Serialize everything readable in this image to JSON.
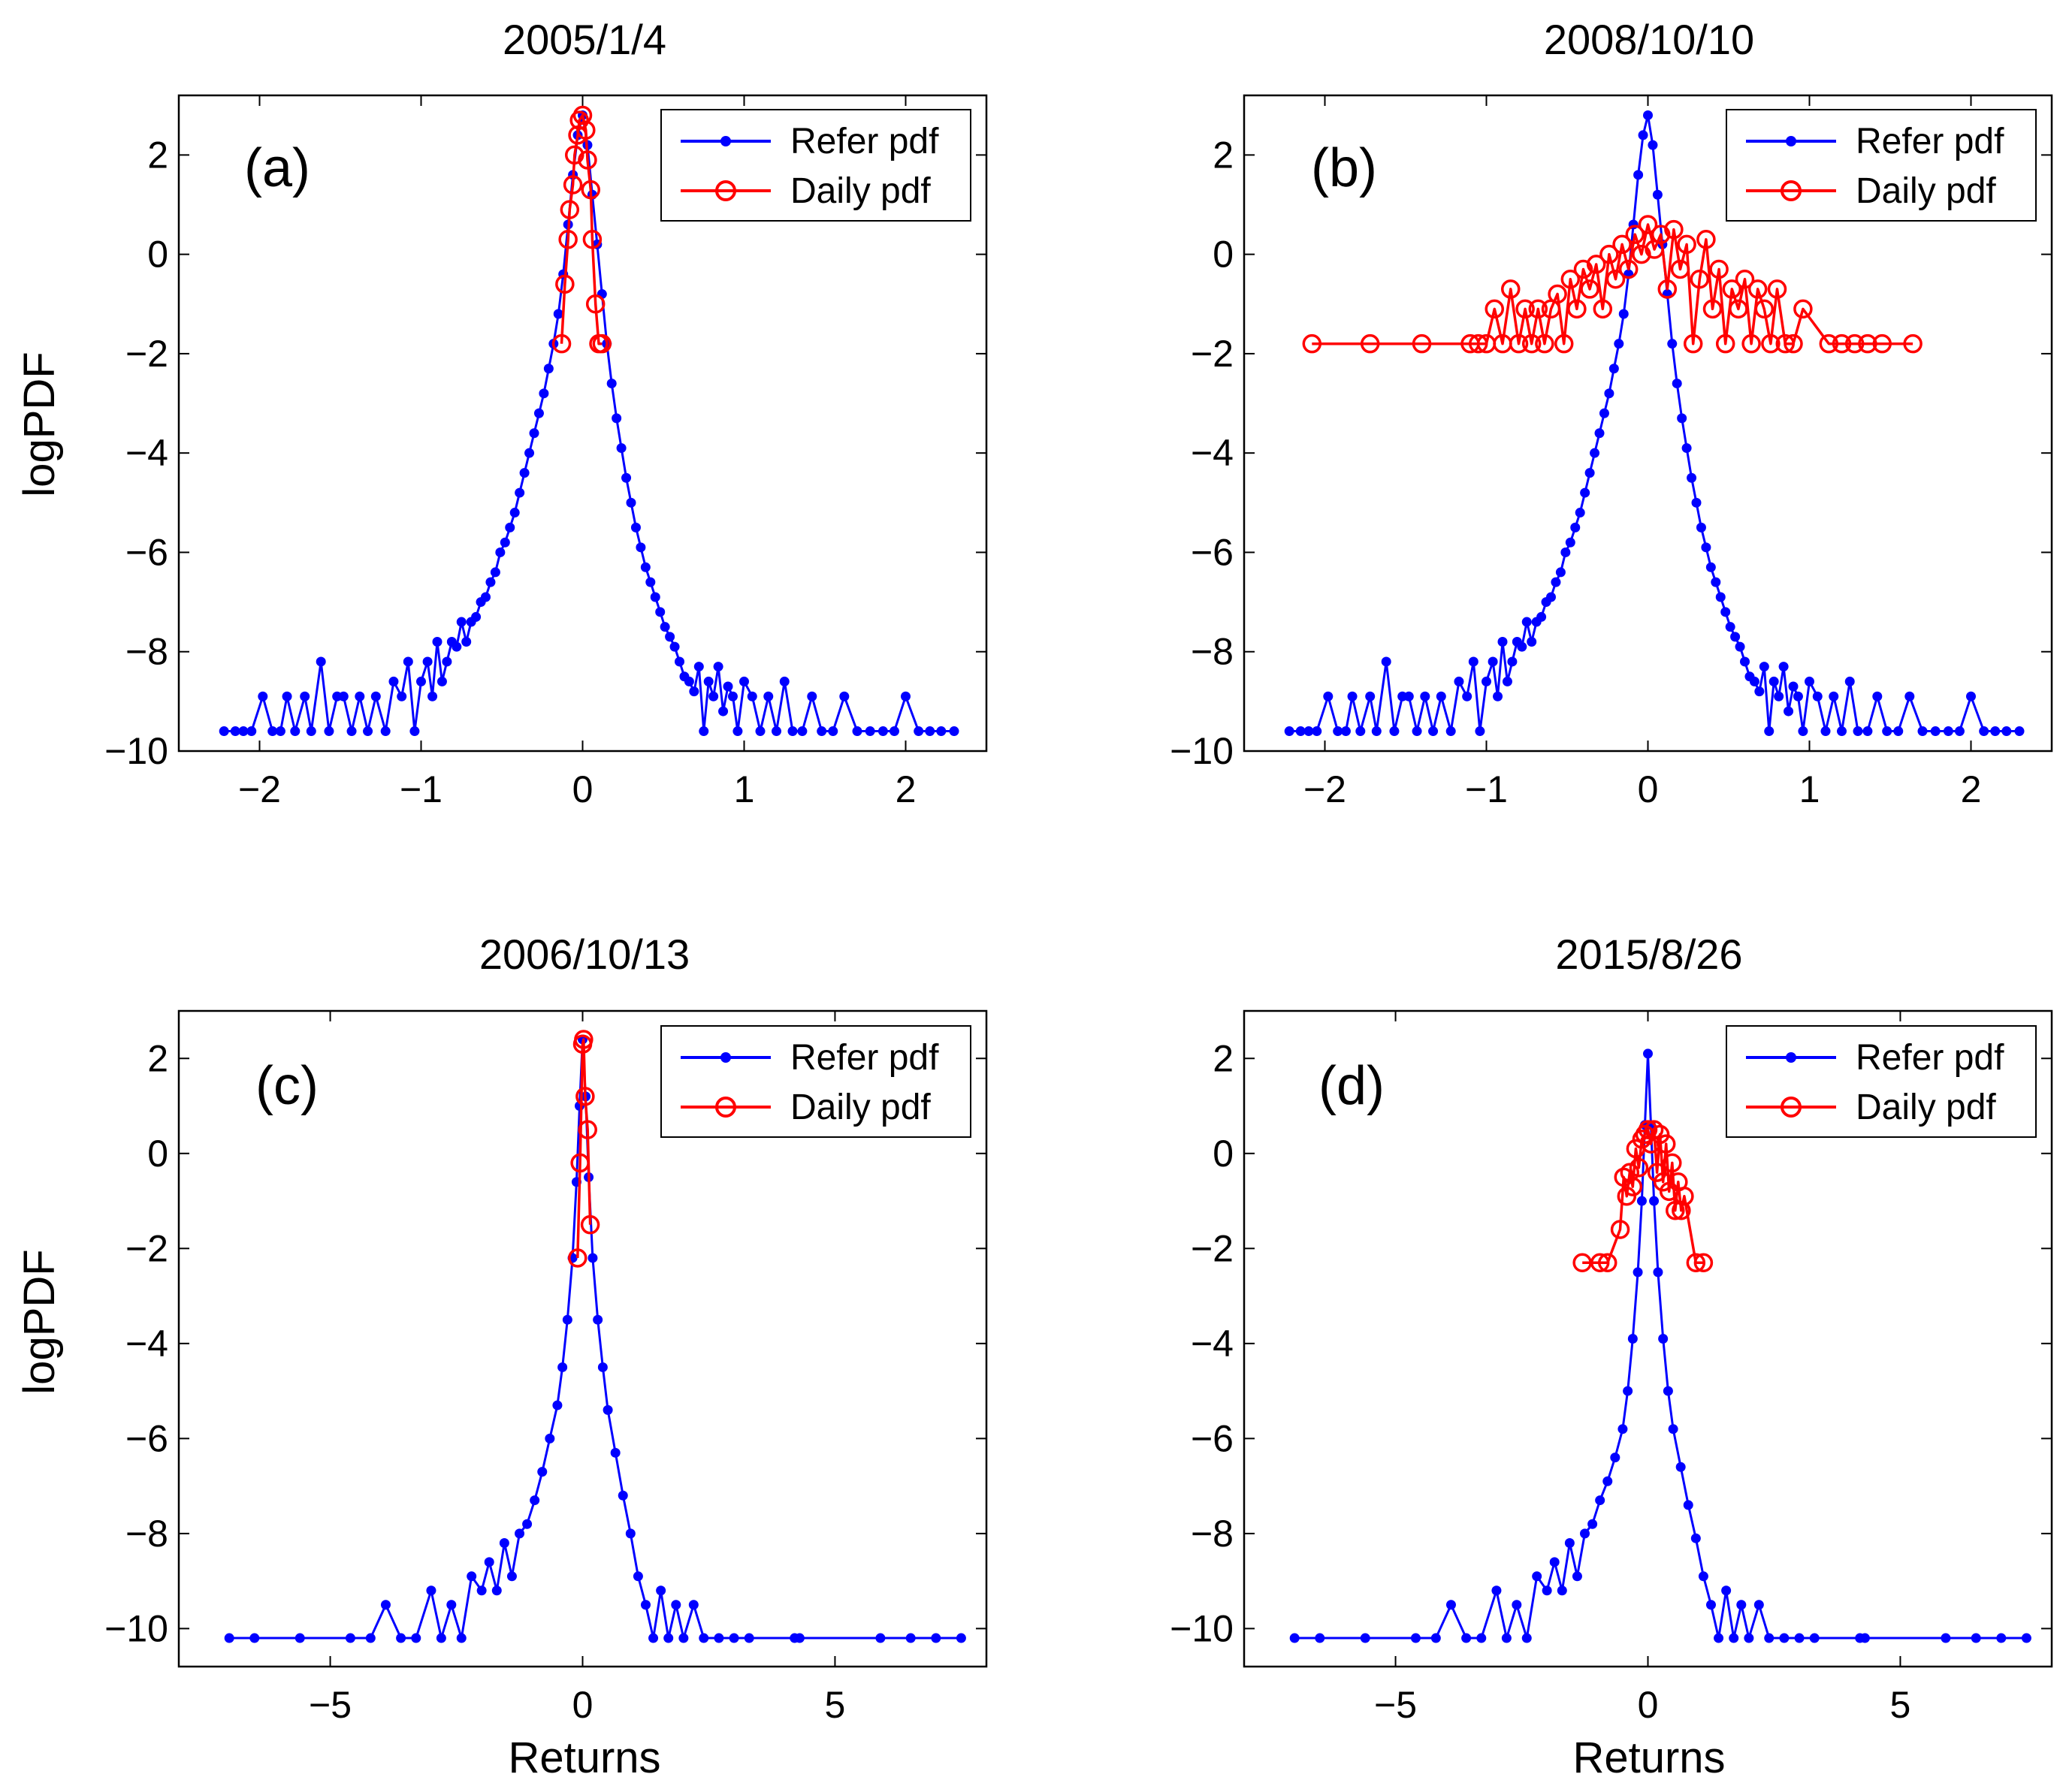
{
  "figure": {
    "series_names": [
      "Refer pdf",
      "Daily pdf"
    ],
    "colors": {
      "refer": "#0000ff",
      "daily": "#ff0000",
      "axes": "#000000",
      "background": "#ffffff"
    }
  },
  "chart_data": [
    {
      "type": "line",
      "panel": "(a)",
      "title": "2005/1/4",
      "xlabel": "",
      "ylabel": "logPDF",
      "xlim": [
        -2.5,
        2.5
      ],
      "ylim": [
        -10,
        3.2
      ],
      "xticks": [
        -2,
        -1,
        0,
        1,
        2
      ],
      "yticks": [
        -10,
        -8,
        -6,
        -4,
        -2,
        0,
        2
      ],
      "legend": [
        "Refer pdf",
        "Daily pdf"
      ],
      "legend_position": "top-right",
      "series": [
        {
          "name": "Refer pdf",
          "marker": "dot",
          "x": [
            -2.22,
            -2.15,
            -2.1,
            -2.05,
            -1.98,
            -1.92,
            -1.87,
            -1.83,
            -1.78,
            -1.72,
            -1.68,
            -1.62,
            -1.57,
            -1.52,
            -1.48,
            -1.43,
            -1.38,
            -1.33,
            -1.28,
            -1.22,
            -1.17,
            -1.12,
            -1.08,
            -1.04,
            -1.0,
            -0.96,
            -0.93,
            -0.9,
            -0.87,
            -0.84,
            -0.81,
            -0.78,
            -0.75,
            -0.72,
            -0.69,
            -0.66,
            -0.63,
            -0.6,
            -0.57,
            -0.54,
            -0.51,
            -0.48,
            -0.45,
            -0.42,
            -0.39,
            -0.36,
            -0.33,
            -0.3,
            -0.27,
            -0.24,
            -0.21,
            -0.18,
            -0.15,
            -0.12,
            -0.09,
            -0.06,
            -0.03,
            0.0,
            0.03,
            0.06,
            0.09,
            0.12,
            0.15,
            0.18,
            0.21,
            0.24,
            0.27,
            0.3,
            0.33,
            0.36,
            0.39,
            0.42,
            0.45,
            0.48,
            0.51,
            0.54,
            0.57,
            0.6,
            0.63,
            0.66,
            0.69,
            0.72,
            0.75,
            0.78,
            0.81,
            0.84,
            0.87,
            0.9,
            0.93,
            0.96,
            1.0,
            1.05,
            1.1,
            1.15,
            1.2,
            1.25,
            1.3,
            1.36,
            1.42,
            1.48,
            1.55,
            1.62,
            1.7,
            1.78,
            1.86,
            1.93,
            2.0,
            2.08,
            2.15,
            2.22,
            2.3
          ],
          "y": [
            -9.6,
            -9.6,
            -9.6,
            -9.6,
            -8.9,
            -9.6,
            -9.6,
            -8.9,
            -9.6,
            -8.9,
            -9.6,
            -8.2,
            -9.6,
            -8.9,
            -8.9,
            -9.6,
            -8.9,
            -9.6,
            -8.9,
            -9.6,
            -8.6,
            -8.9,
            -8.2,
            -9.6,
            -8.6,
            -8.2,
            -8.9,
            -7.8,
            -8.6,
            -8.2,
            -7.8,
            -7.9,
            -7.4,
            -7.8,
            -7.4,
            -7.3,
            -7.0,
            -6.9,
            -6.6,
            -6.4,
            -6.0,
            -5.8,
            -5.5,
            -5.2,
            -4.8,
            -4.4,
            -4.0,
            -3.6,
            -3.2,
            -2.8,
            -2.3,
            -1.8,
            -1.2,
            -0.4,
            0.6,
            1.6,
            2.4,
            2.8,
            2.2,
            1.2,
            0.2,
            -0.8,
            -1.8,
            -2.6,
            -3.3,
            -3.9,
            -4.5,
            -5.0,
            -5.5,
            -5.9,
            -6.3,
            -6.6,
            -6.9,
            -7.2,
            -7.5,
            -7.7,
            -7.9,
            -8.2,
            -8.5,
            -8.6,
            -8.8,
            -8.3,
            -9.6,
            -8.6,
            -8.9,
            -8.3,
            -9.2,
            -8.7,
            -8.9,
            -9.6,
            -8.6,
            -8.9,
            -9.6,
            -8.9,
            -9.6,
            -8.6,
            -9.6,
            -9.6,
            -8.9,
            -9.6,
            -9.6,
            -8.9,
            -9.6,
            -9.6,
            -9.6,
            -9.6,
            -8.9,
            -9.6,
            -9.6,
            -9.6,
            -9.6
          ]
        },
        {
          "name": "Daily pdf",
          "marker": "circle",
          "x": [
            -0.13,
            -0.11,
            -0.09,
            -0.08,
            -0.06,
            -0.05,
            -0.03,
            -0.02,
            0.0,
            0.02,
            0.03,
            0.05,
            0.06,
            0.08,
            0.1,
            0.12
          ],
          "y": [
            -1.8,
            -0.6,
            0.3,
            0.9,
            1.4,
            2.0,
            2.4,
            2.7,
            2.8,
            2.5,
            1.9,
            1.3,
            0.3,
            -1.0,
            -1.8,
            -1.8
          ]
        }
      ]
    },
    {
      "type": "line",
      "panel": "(b)",
      "title": "2008/10/10",
      "xlabel": "",
      "ylabel": "",
      "xlim": [
        -2.5,
        2.5
      ],
      "ylim": [
        -10,
        3.2
      ],
      "xticks": [
        -2,
        -1,
        0,
        1,
        2
      ],
      "yticks": [
        -10,
        -8,
        -6,
        -4,
        -2,
        0,
        2
      ],
      "legend": [
        "Refer pdf",
        "Daily pdf"
      ],
      "legend_position": "top-right",
      "series": [
        {
          "name": "Refer pdf",
          "marker": "dot",
          "x": [
            -2.22,
            -2.15,
            -2.1,
            -2.05,
            -1.98,
            -1.92,
            -1.87,
            -1.83,
            -1.78,
            -1.72,
            -1.68,
            -1.62,
            -1.57,
            -1.52,
            -1.48,
            -1.43,
            -1.38,
            -1.33,
            -1.28,
            -1.22,
            -1.17,
            -1.12,
            -1.08,
            -1.04,
            -1.0,
            -0.96,
            -0.93,
            -0.9,
            -0.87,
            -0.84,
            -0.81,
            -0.78,
            -0.75,
            -0.72,
            -0.69,
            -0.66,
            -0.63,
            -0.6,
            -0.57,
            -0.54,
            -0.51,
            -0.48,
            -0.45,
            -0.42,
            -0.39,
            -0.36,
            -0.33,
            -0.3,
            -0.27,
            -0.24,
            -0.21,
            -0.18,
            -0.15,
            -0.12,
            -0.09,
            -0.06,
            -0.03,
            0.0,
            0.03,
            0.06,
            0.09,
            0.12,
            0.15,
            0.18,
            0.21,
            0.24,
            0.27,
            0.3,
            0.33,
            0.36,
            0.39,
            0.42,
            0.45,
            0.48,
            0.51,
            0.54,
            0.57,
            0.6,
            0.63,
            0.66,
            0.69,
            0.72,
            0.75,
            0.78,
            0.81,
            0.84,
            0.87,
            0.9,
            0.93,
            0.96,
            1.0,
            1.05,
            1.1,
            1.15,
            1.2,
            1.25,
            1.3,
            1.36,
            1.42,
            1.48,
            1.55,
            1.62,
            1.7,
            1.78,
            1.86,
            1.93,
            2.0,
            2.08,
            2.15,
            2.22,
            2.3
          ],
          "y": [
            -9.6,
            -9.6,
            -9.6,
            -9.6,
            -8.9,
            -9.6,
            -9.6,
            -8.9,
            -9.6,
            -8.9,
            -9.6,
            -8.2,
            -9.6,
            -8.9,
            -8.9,
            -9.6,
            -8.9,
            -9.6,
            -8.9,
            -9.6,
            -8.6,
            -8.9,
            -8.2,
            -9.6,
            -8.6,
            -8.2,
            -8.9,
            -7.8,
            -8.6,
            -8.2,
            -7.8,
            -7.9,
            -7.4,
            -7.8,
            -7.4,
            -7.3,
            -7.0,
            -6.9,
            -6.6,
            -6.4,
            -6.0,
            -5.8,
            -5.5,
            -5.2,
            -4.8,
            -4.4,
            -4.0,
            -3.6,
            -3.2,
            -2.8,
            -2.3,
            -1.8,
            -1.2,
            -0.4,
            0.6,
            1.6,
            2.4,
            2.8,
            2.2,
            1.2,
            0.2,
            -0.8,
            -1.8,
            -2.6,
            -3.3,
            -3.9,
            -4.5,
            -5.0,
            -5.5,
            -5.9,
            -6.3,
            -6.6,
            -6.9,
            -7.2,
            -7.5,
            -7.7,
            -7.9,
            -8.2,
            -8.5,
            -8.6,
            -8.8,
            -8.3,
            -9.6,
            -8.6,
            -8.9,
            -8.3,
            -9.2,
            -8.7,
            -8.9,
            -9.6,
            -8.6,
            -8.9,
            -9.6,
            -8.9,
            -9.6,
            -8.6,
            -9.6,
            -9.6,
            -8.9,
            -9.6,
            -9.6,
            -8.9,
            -9.6,
            -9.6,
            -9.6,
            -9.6,
            -8.9,
            -9.6,
            -9.6,
            -9.6,
            -9.6
          ]
        },
        {
          "name": "Daily pdf",
          "marker": "circle",
          "x": [
            -2.08,
            -1.72,
            -1.4,
            -1.1,
            -1.05,
            -1.0,
            -0.95,
            -0.9,
            -0.85,
            -0.8,
            -0.76,
            -0.72,
            -0.68,
            -0.64,
            -0.6,
            -0.56,
            -0.52,
            -0.48,
            -0.44,
            -0.4,
            -0.36,
            -0.32,
            -0.28,
            -0.24,
            -0.2,
            -0.16,
            -0.12,
            -0.08,
            -0.04,
            0.0,
            0.04,
            0.08,
            0.12,
            0.16,
            0.2,
            0.24,
            0.28,
            0.32,
            0.36,
            0.4,
            0.44,
            0.48,
            0.52,
            0.56,
            0.6,
            0.64,
            0.68,
            0.72,
            0.76,
            0.8,
            0.85,
            0.9,
            0.96,
            1.12,
            1.2,
            1.28,
            1.36,
            1.45,
            1.64
          ],
          "y": [
            -1.8,
            -1.8,
            -1.8,
            -1.8,
            -1.8,
            -1.8,
            -1.1,
            -1.8,
            -0.7,
            -1.8,
            -1.1,
            -1.8,
            -1.1,
            -1.8,
            -1.1,
            -0.8,
            -1.8,
            -0.5,
            -1.1,
            -0.3,
            -0.7,
            -0.2,
            -1.1,
            0.0,
            -0.5,
            0.2,
            -0.3,
            0.4,
            0.0,
            0.6,
            0.1,
            0.4,
            -0.7,
            0.5,
            -0.3,
            0.2,
            -1.8,
            -0.5,
            0.3,
            -1.1,
            -0.3,
            -1.8,
            -0.7,
            -1.1,
            -0.5,
            -1.8,
            -0.7,
            -1.1,
            -1.8,
            -0.7,
            -1.8,
            -1.8,
            -1.1,
            -1.8,
            -1.8,
            -1.8,
            -1.8,
            -1.8,
            -1.8
          ]
        }
      ]
    },
    {
      "type": "line",
      "panel": "(c)",
      "title": "2006/10/13",
      "xlabel": "Returns",
      "ylabel": "logPDF",
      "xlim": [
        -8,
        8
      ],
      "ylim": [
        -10.8,
        3.0
      ],
      "xticks": [
        -5,
        0,
        5
      ],
      "yticks": [
        -10,
        -8,
        -6,
        -4,
        -2,
        0,
        2
      ],
      "legend": [
        "Refer pdf",
        "Daily pdf"
      ],
      "legend_position": "top-right",
      "series": [
        {
          "name": "Refer pdf",
          "marker": "dot",
          "x": [
            -7.0,
            -6.5,
            -5.6,
            -4.6,
            -4.2,
            -3.9,
            -3.6,
            -3.3,
            -3.0,
            -2.8,
            -2.6,
            -2.4,
            -2.2,
            -2.0,
            -1.85,
            -1.7,
            -1.55,
            -1.4,
            -1.25,
            -1.1,
            -0.95,
            -0.8,
            -0.65,
            -0.5,
            -0.4,
            -0.3,
            -0.2,
            -0.12,
            -0.06,
            0.0,
            0.06,
            0.12,
            0.2,
            0.3,
            0.4,
            0.5,
            0.65,
            0.8,
            0.95,
            1.1,
            1.25,
            1.4,
            1.55,
            1.7,
            1.85,
            2.0,
            2.2,
            2.4,
            2.7,
            3.0,
            3.3,
            4.2,
            4.3,
            5.9,
            6.5,
            7.0,
            7.5
          ],
          "y": [
            -10.2,
            -10.2,
            -10.2,
            -10.2,
            -10.2,
            -9.5,
            -10.2,
            -10.2,
            -9.2,
            -10.2,
            -9.5,
            -10.2,
            -8.9,
            -9.2,
            -8.6,
            -9.2,
            -8.2,
            -8.9,
            -8.0,
            -7.8,
            -7.3,
            -6.7,
            -6.0,
            -5.3,
            -4.5,
            -3.5,
            -2.2,
            -0.6,
            1.0,
            2.4,
            1.2,
            -0.5,
            -2.2,
            -3.5,
            -4.5,
            -5.4,
            -6.3,
            -7.2,
            -8.0,
            -8.9,
            -9.5,
            -10.2,
            -9.2,
            -10.2,
            -9.5,
            -10.2,
            -9.5,
            -10.2,
            -10.2,
            -10.2,
            -10.2,
            -10.2,
            -10.2,
            -10.2,
            -10.2,
            -10.2,
            -10.2
          ]
        },
        {
          "name": "Daily pdf",
          "marker": "circle",
          "x": [
            -0.1,
            -0.05,
            0.0,
            0.02,
            0.05,
            0.1,
            0.15
          ],
          "y": [
            -2.2,
            -0.2,
            2.3,
            2.4,
            1.2,
            0.5,
            -1.5
          ]
        }
      ]
    },
    {
      "type": "line",
      "panel": "(d)",
      "title": "2015/8/26",
      "xlabel": "Returns",
      "ylabel": "",
      "xlim": [
        -8,
        8
      ],
      "ylim": [
        -10.8,
        3.0
      ],
      "xticks": [
        -5,
        0,
        5
      ],
      "yticks": [
        -10,
        -8,
        -6,
        -4,
        -2,
        0,
        2
      ],
      "legend": [
        "Refer pdf",
        "Daily pdf"
      ],
      "legend_position": "top-right",
      "series": [
        {
          "name": "Refer pdf",
          "marker": "dot",
          "x": [
            -7.0,
            -6.5,
            -5.6,
            -4.6,
            -4.2,
            -3.9,
            -3.6,
            -3.3,
            -3.0,
            -2.8,
            -2.6,
            -2.4,
            -2.2,
            -2.0,
            -1.85,
            -1.7,
            -1.55,
            -1.4,
            -1.25,
            -1.1,
            -0.95,
            -0.8,
            -0.65,
            -0.5,
            -0.4,
            -0.3,
            -0.2,
            -0.12,
            -0.06,
            0.0,
            0.06,
            0.12,
            0.2,
            0.3,
            0.4,
            0.5,
            0.65,
            0.8,
            0.95,
            1.1,
            1.25,
            1.4,
            1.55,
            1.7,
            1.85,
            2.0,
            2.2,
            2.4,
            2.7,
            3.0,
            3.3,
            4.2,
            4.3,
            5.9,
            6.5,
            7.0,
            7.5
          ],
          "y": [
            -10.2,
            -10.2,
            -10.2,
            -10.2,
            -10.2,
            -9.5,
            -10.2,
            -10.2,
            -9.2,
            -10.2,
            -9.5,
            -10.2,
            -8.9,
            -9.2,
            -8.6,
            -9.2,
            -8.2,
            -8.9,
            -8.0,
            -7.8,
            -7.3,
            -6.9,
            -6.4,
            -5.8,
            -5.0,
            -3.9,
            -2.5,
            -1.0,
            0.6,
            2.1,
            0.6,
            -1.0,
            -2.5,
            -3.9,
            -5.0,
            -5.8,
            -6.6,
            -7.4,
            -8.1,
            -8.9,
            -9.5,
            -10.2,
            -9.2,
            -10.2,
            -9.5,
            -10.2,
            -9.5,
            -10.2,
            -10.2,
            -10.2,
            -10.2,
            -10.2,
            -10.2,
            -10.2,
            -10.2,
            -10.2,
            -10.2
          ]
        },
        {
          "name": "Daily pdf",
          "marker": "circle",
          "x": [
            -1.3,
            -0.95,
            -0.8,
            -0.55,
            -0.48,
            -0.42,
            -0.36,
            -0.3,
            -0.24,
            -0.18,
            -0.12,
            -0.06,
            0.0,
            0.06,
            0.12,
            0.18,
            0.24,
            0.3,
            0.36,
            0.42,
            0.48,
            0.54,
            0.6,
            0.66,
            0.72,
            0.95,
            1.1
          ],
          "y": [
            -2.3,
            -2.3,
            -2.3,
            -1.6,
            -0.5,
            -0.9,
            -0.4,
            -0.7,
            0.1,
            -0.3,
            0.3,
            0.4,
            0.5,
            0.2,
            0.5,
            -0.4,
            0.4,
            -0.6,
            0.2,
            -0.8,
            -0.2,
            -1.2,
            -0.6,
            -1.2,
            -0.9,
            -2.3,
            -2.3
          ]
        }
      ]
    }
  ]
}
